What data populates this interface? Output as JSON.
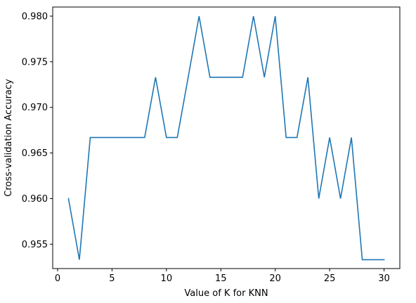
{
  "chart_data": {
    "type": "line",
    "title": "",
    "xlabel": "Value of K for KNN",
    "ylabel": "Cross-validation Accuracy",
    "xlim": [
      -0.45,
      31.45
    ],
    "ylim": [
      0.95233,
      0.981
    ],
    "x_ticks": [
      0,
      5,
      10,
      15,
      20,
      25,
      30
    ],
    "y_ticks": [
      0.955,
      0.96,
      0.965,
      0.97,
      0.975,
      0.98
    ],
    "y_tick_labels": [
      "0.955",
      "0.960",
      "0.965",
      "0.970",
      "0.975",
      "0.980"
    ],
    "grid": false,
    "legend": "none",
    "series": [
      {
        "color": "#1f77b4",
        "x": [
          1,
          2,
          3,
          4,
          5,
          6,
          7,
          8,
          9,
          10,
          11,
          12,
          13,
          14,
          15,
          16,
          17,
          18,
          19,
          20,
          21,
          22,
          23,
          24,
          25,
          26,
          27,
          28,
          29,
          30
        ],
        "y": [
          0.96,
          0.9533,
          0.9667,
          0.9667,
          0.9667,
          0.9667,
          0.9667,
          0.9667,
          0.9733,
          0.9667,
          0.9667,
          0.9733,
          0.98,
          0.9733,
          0.9733,
          0.9733,
          0.9733,
          0.98,
          0.9733,
          0.98,
          0.9667,
          0.9667,
          0.9733,
          0.96,
          0.9667,
          0.96,
          0.9667,
          0.9533,
          0.9533,
          0.9533
        ]
      }
    ]
  }
}
